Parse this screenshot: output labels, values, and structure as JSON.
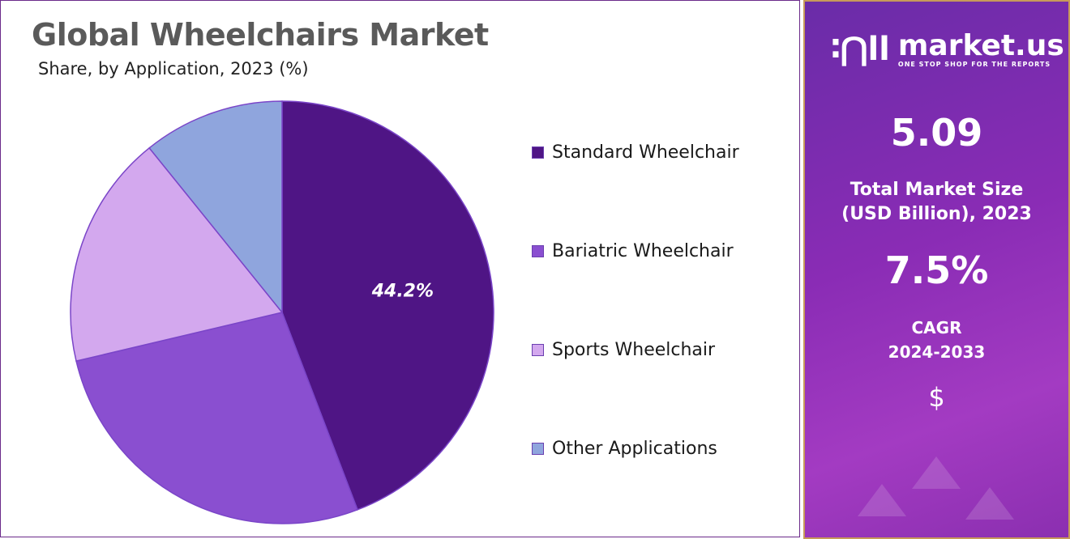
{
  "chart_data": {
    "type": "pie",
    "title": "Global Wheelchairs Market",
    "subtitle": "Share, by Application, 2023 (%)",
    "categories": [
      "Standard Wheelchair",
      "Bariatric Wheelchair",
      "Sports Wheelchair",
      "Other Applications"
    ],
    "values": [
      44.2,
      27.1,
      17.9,
      10.8
    ],
    "colors": [
      "#4f1585",
      "#8a4fd0",
      "#d3a8ee",
      "#8fa5dd"
    ],
    "data_labels": [
      "44.2%",
      null,
      null,
      null
    ],
    "legend_position": "right",
    "start_angle": "top, clockwise"
  },
  "sidebar": {
    "brand": "market.us",
    "tagline": "ONE STOP SHOP FOR THE REPORTS",
    "market_size_value": "5.09",
    "market_size_label_1": "Total Market Size",
    "market_size_label_2": "(USD Billion), 2023",
    "cagr_value": "7.5%",
    "cagr_label_1": "CAGR",
    "cagr_label_2": "2024-2033",
    "currency_symbol": "$",
    "accent": "#8a2cb5"
  }
}
